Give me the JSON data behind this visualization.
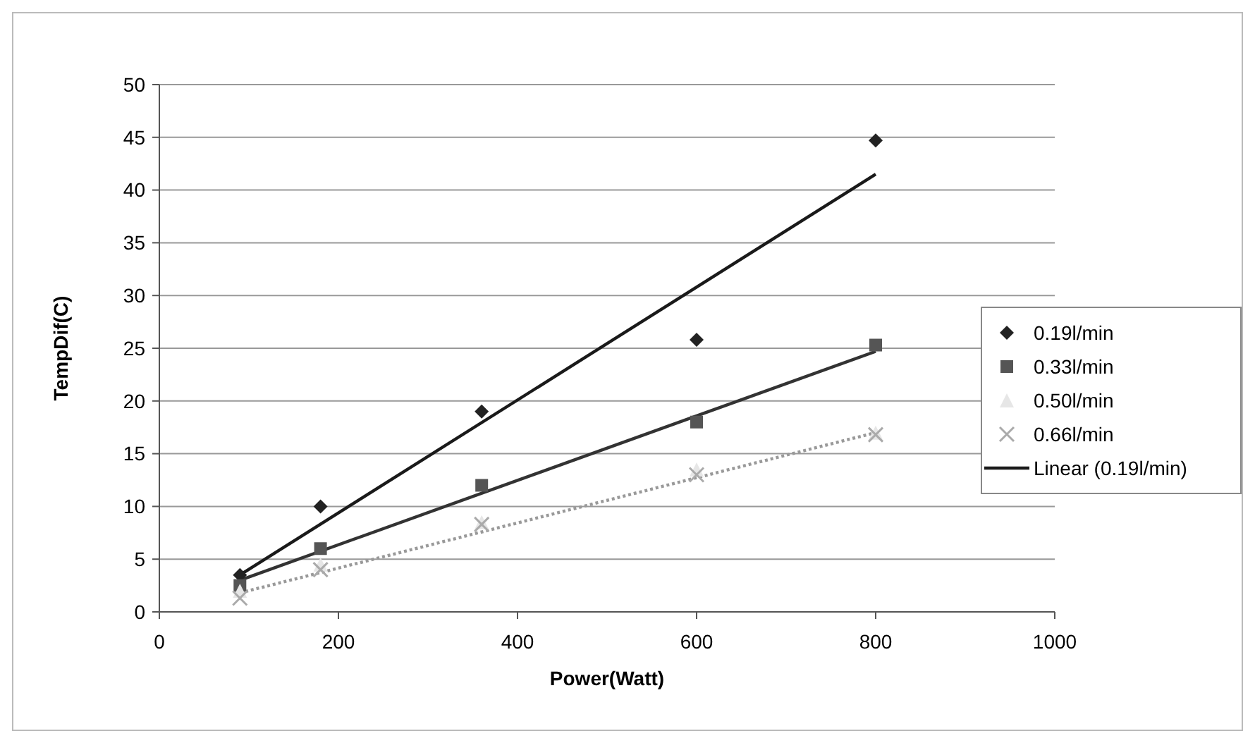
{
  "chart_data": {
    "type": "scatter",
    "xlabel": "Power(Watt)",
    "ylabel": "TempDif(C)",
    "xlim": [
      0,
      1000
    ],
    "ylim": [
      0,
      50
    ],
    "xticks": [
      0,
      200,
      400,
      600,
      800,
      1000
    ],
    "yticks": [
      0,
      5,
      10,
      15,
      20,
      25,
      30,
      35,
      40,
      45,
      50
    ],
    "grid": "y",
    "legend": "right",
    "series": [
      {
        "name": "0.19l/min",
        "marker": "diamond",
        "color": "#222222",
        "x": [
          90,
          180,
          360,
          600,
          800
        ],
        "values": [
          3.5,
          10,
          19,
          25.8,
          44.7
        ]
      },
      {
        "name": "0.33l/min",
        "marker": "square",
        "color": "#555555",
        "x": [
          90,
          180,
          360,
          600,
          800
        ],
        "values": [
          2.5,
          6,
          12,
          18,
          25.3
        ]
      },
      {
        "name": "0.50l/min",
        "marker": "triangle",
        "color": "#e6e6e6",
        "x": [
          90,
          180,
          360,
          600,
          800
        ],
        "values": [
          2,
          4.5,
          8.5,
          13.5,
          17
        ]
      },
      {
        "name": "0.66l/min",
        "marker": "cross",
        "color": "#aaaaaa",
        "x": [
          90,
          180,
          360,
          600,
          800
        ],
        "values": [
          1.3,
          4,
          8.3,
          13,
          16.8
        ]
      },
      {
        "name": "Linear (0.19l/min)",
        "type": "line",
        "marker": "none",
        "line_style": "solid",
        "color": "#1a1a1a",
        "x": [
          90,
          800
        ],
        "values": [
          3.5,
          41.5
        ]
      },
      {
        "type": "line",
        "marker": "none",
        "line_style": "solid",
        "color": "#333333",
        "x": [
          90,
          800
        ],
        "values": [
          3,
          24.7
        ]
      },
      {
        "type": "line",
        "marker": "none",
        "line_style": "dotted",
        "color": "#999999",
        "x": [
          90,
          800
        ],
        "values": [
          1.8,
          17
        ]
      }
    ]
  }
}
